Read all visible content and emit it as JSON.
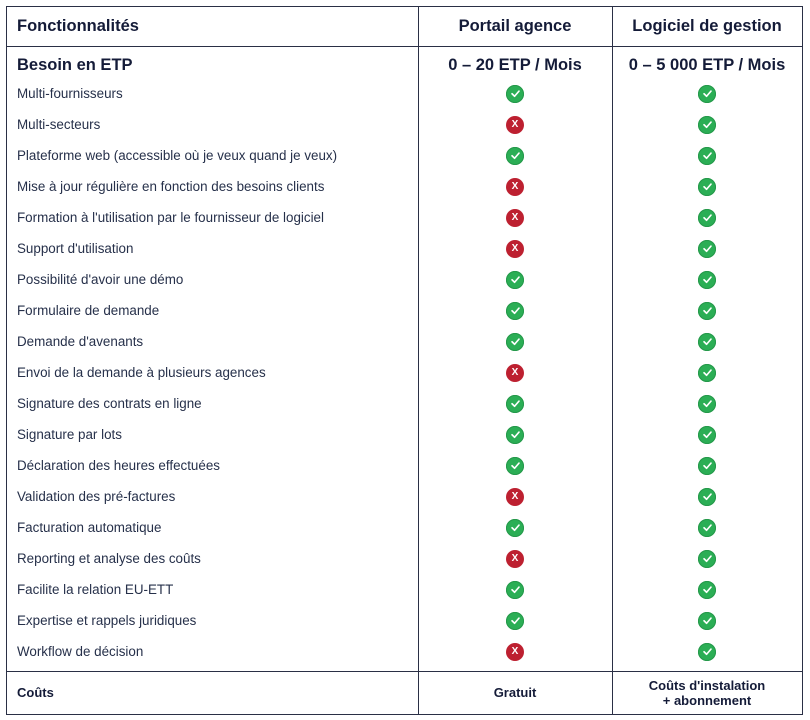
{
  "header": {
    "features": "Fonctionnalités",
    "portal": "Portail agence",
    "software": "Logiciel de gestion"
  },
  "etp": {
    "label": "Besoin en ETP",
    "portal": "0 – 20 ETP / Mois",
    "software": "0 – 5 000 ETP / Mois"
  },
  "icons": {
    "yes": "check-icon",
    "no": "cross-icon",
    "no_glyph": "X",
    "yes_color": "#2bae55",
    "no_color": "#bd2030"
  },
  "rows": [
    {
      "label": "Multi-fournisseurs",
      "portal": true,
      "software": true
    },
    {
      "label": "Multi-secteurs",
      "portal": false,
      "software": true
    },
    {
      "label": "Plateforme web (accessible où je veux quand je veux)",
      "portal": true,
      "software": true
    },
    {
      "label": "Mise à jour régulière en fonction des besoins clients",
      "portal": false,
      "software": true
    },
    {
      "label": "Formation à l'utilisation par le fournisseur de logiciel",
      "portal": false,
      "software": true
    },
    {
      "label": "Support d'utilisation",
      "portal": false,
      "software": true
    },
    {
      "label": "Possibilité d'avoir une démo",
      "portal": true,
      "software": true
    },
    {
      "label": "Formulaire de demande",
      "portal": true,
      "software": true
    },
    {
      "label": "Demande d'avenants",
      "portal": true,
      "software": true
    },
    {
      "label": "Envoi de la demande à plusieurs agences",
      "portal": false,
      "software": true
    },
    {
      "label": "Signature des contrats en ligne",
      "portal": true,
      "software": true
    },
    {
      "label": "Signature par lots",
      "portal": true,
      "software": true
    },
    {
      "label": "Déclaration des heures effectuées",
      "portal": true,
      "software": true
    },
    {
      "label": "Validation des pré-factures",
      "portal": false,
      "software": true
    },
    {
      "label": "Facturation automatique",
      "portal": true,
      "software": true
    },
    {
      "label": "Reporting et analyse des coûts",
      "portal": false,
      "software": true
    },
    {
      "label": "Facilite la relation EU-ETT",
      "portal": true,
      "software": true
    },
    {
      "label": "Expertise et rappels juridiques",
      "portal": true,
      "software": true
    },
    {
      "label": "Workflow de décision",
      "portal": false,
      "software": true
    }
  ],
  "footer": {
    "label": "Coûts",
    "portal": "Gratuit",
    "software_line1": "Coûts d'instalation",
    "software_line2": "+ abonnement"
  }
}
